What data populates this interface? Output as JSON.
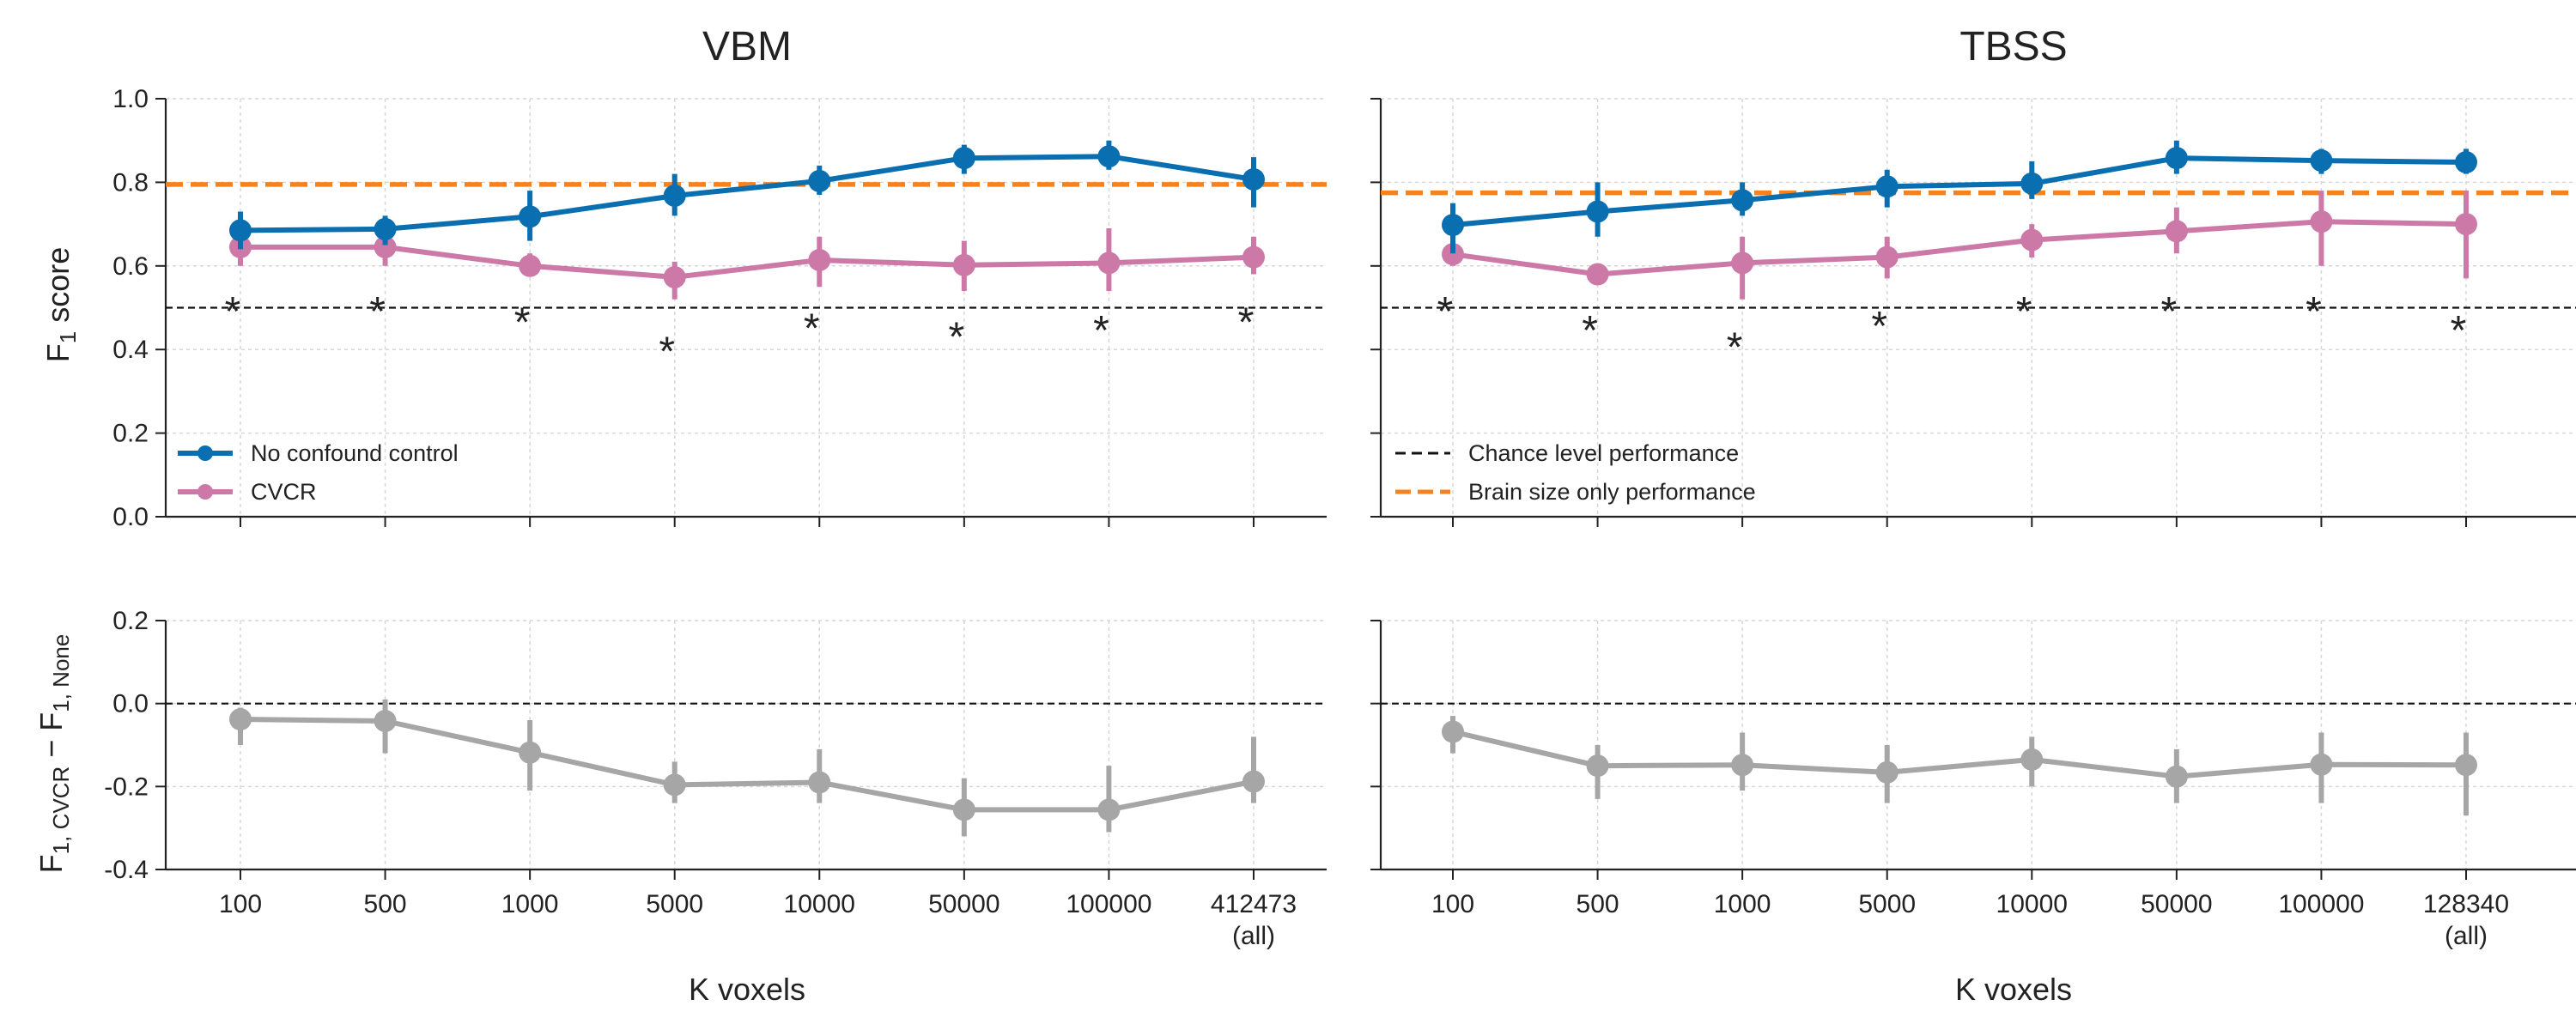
{
  "colors": {
    "no_confound": "#0a6fb0",
    "cvcr": "#cc79a7",
    "brain_size": "#f5821f",
    "chance": "#111111",
    "difference": "#a6a6a6",
    "grid": "#d7d7d7",
    "axis": "#222222"
  },
  "layout_words": {
    "left_legend": "lower-left of top-left panel",
    "right_legend": "lower-left of top-right panel"
  },
  "chart_data": [
    {
      "id": "vbm_f1",
      "type": "line",
      "title": "VBM",
      "ylabel_main": "F",
      "ylabel_sub": "1",
      "ylabel_tail": " score",
      "xlabel": "",
      "categories": [
        "100",
        "500",
        "1000",
        "5000",
        "10000",
        "50000",
        "100000",
        "412473"
      ],
      "ylim": [
        0.0,
        1.0
      ],
      "yticks": [
        "0.0",
        "0.2",
        "0.4",
        "0.6",
        "0.8",
        "1.0"
      ],
      "grid": true,
      "series": [
        {
          "name": "No confound control",
          "color_key": "no_confound",
          "values": [
            0.685,
            0.688,
            0.718,
            0.768,
            0.803,
            0.858,
            0.862,
            0.807
          ],
          "err_low": [
            0.64,
            0.65,
            0.66,
            0.72,
            0.77,
            0.82,
            0.83,
            0.74
          ],
          "err_high": [
            0.73,
            0.72,
            0.78,
            0.82,
            0.84,
            0.89,
            0.9,
            0.86
          ]
        },
        {
          "name": "CVCR",
          "color_key": "cvcr",
          "values": [
            0.645,
            0.645,
            0.6,
            0.573,
            0.614,
            0.602,
            0.607,
            0.621
          ],
          "err_low": [
            0.6,
            0.6,
            0.58,
            0.52,
            0.55,
            0.54,
            0.54,
            0.58
          ],
          "err_high": [
            0.7,
            0.68,
            0.63,
            0.61,
            0.67,
            0.66,
            0.69,
            0.67
          ]
        }
      ],
      "brain_size_only": 0.795,
      "chance_level": 0.5,
      "significance_marks": [
        "*",
        "*",
        "*",
        "*",
        "*",
        "*",
        "*",
        "*"
      ],
      "significance_y": [
        0.515,
        0.515,
        0.49,
        0.42,
        0.475,
        0.455,
        0.47,
        0.49
      ]
    },
    {
      "id": "tbss_f1",
      "type": "line",
      "title": "TBSS",
      "xlabel": "",
      "categories": [
        "100",
        "500",
        "1000",
        "5000",
        "10000",
        "50000",
        "100000",
        "128340"
      ],
      "ylim": [
        0.0,
        1.0
      ],
      "yticks": [
        "0.0",
        "0.2",
        "0.4",
        "0.6",
        "0.8",
        "1.0"
      ],
      "grid": true,
      "series": [
        {
          "name": "No confound control",
          "color_key": "no_confound",
          "values": [
            0.698,
            0.73,
            0.757,
            0.79,
            0.797,
            0.858,
            0.852,
            0.848
          ],
          "err_low": [
            0.63,
            0.67,
            0.72,
            0.74,
            0.76,
            0.82,
            0.82,
            0.82
          ],
          "err_high": [
            0.75,
            0.8,
            0.8,
            0.83,
            0.85,
            0.9,
            0.88,
            0.88
          ]
        },
        {
          "name": "CVCR",
          "color_key": "cvcr",
          "values": [
            0.628,
            0.58,
            0.607,
            0.621,
            0.662,
            0.683,
            0.706,
            0.7
          ],
          "err_low": [
            0.6,
            0.56,
            0.52,
            0.57,
            0.62,
            0.63,
            0.6,
            0.57
          ],
          "err_high": [
            0.66,
            0.6,
            0.67,
            0.67,
            0.7,
            0.74,
            0.78,
            0.78
          ]
        }
      ],
      "brain_size_only": 0.775,
      "chance_level": 0.5,
      "significance_marks": [
        "*",
        "*",
        "*",
        "*",
        "*",
        "*",
        "*",
        "*"
      ],
      "significance_y": [
        0.515,
        0.47,
        0.43,
        0.48,
        0.515,
        0.515,
        0.515,
        0.47
      ]
    },
    {
      "id": "vbm_diff",
      "type": "line",
      "title": "",
      "ylabel_pre": "F",
      "ylabel_sub1": "1, CVCR",
      "ylabel_mid": " − F",
      "ylabel_sub2": "1, None",
      "xlabel": "K voxels",
      "categories": [
        "100",
        "500",
        "1000",
        "5000",
        "10000",
        "50000",
        "100000",
        "412473"
      ],
      "xtick_extra": [
        "",
        "",
        "",
        "",
        "",
        "",
        "",
        "(all)"
      ],
      "ylim": [
        -0.4,
        0.2
      ],
      "yticks": [
        "-0.4",
        "-0.2",
        "0.0",
        "0.2"
      ],
      "ytick_values": [
        -0.4,
        -0.2,
        0.0,
        0.2
      ],
      "grid": true,
      "zero_line": 0.0,
      "series": [
        {
          "name": "",
          "color_key": "difference",
          "values": [
            -0.038,
            -0.042,
            -0.118,
            -0.196,
            -0.19,
            -0.256,
            -0.256,
            -0.188
          ],
          "err_low": [
            -0.1,
            -0.12,
            -0.21,
            -0.24,
            -0.24,
            -0.32,
            -0.31,
            -0.24
          ],
          "err_high": [
            -0.01,
            0.01,
            -0.04,
            -0.14,
            -0.11,
            -0.18,
            -0.15,
            -0.08
          ]
        }
      ]
    },
    {
      "id": "tbss_diff",
      "type": "line",
      "title": "",
      "xlabel": "K voxels",
      "categories": [
        "100",
        "500",
        "1000",
        "5000",
        "10000",
        "50000",
        "100000",
        "128340"
      ],
      "xtick_extra": [
        "",
        "",
        "",
        "",
        "",
        "",
        "",
        "(all)"
      ],
      "ylim": [
        -0.4,
        0.2
      ],
      "ytick_values": [
        -0.4,
        -0.2,
        0.0,
        0.2
      ],
      "grid": true,
      "zero_line": 0.0,
      "series": [
        {
          "name": "",
          "color_key": "difference",
          "values": [
            -0.068,
            -0.15,
            -0.148,
            -0.166,
            -0.135,
            -0.176,
            -0.147,
            -0.148
          ],
          "err_low": [
            -0.12,
            -0.23,
            -0.21,
            -0.24,
            -0.2,
            -0.24,
            -0.24,
            -0.27
          ],
          "err_high": [
            -0.03,
            -0.1,
            -0.07,
            -0.1,
            -0.08,
            -0.11,
            -0.07,
            -0.07
          ]
        }
      ]
    }
  ],
  "legends": {
    "left": [
      {
        "label": "No confound control",
        "color_key": "no_confound",
        "style": "line-marker"
      },
      {
        "label": "CVCR",
        "color_key": "cvcr",
        "style": "line-marker"
      }
    ],
    "right": [
      {
        "label": "Chance level performance",
        "color_key": "chance",
        "style": "dashed-thin"
      },
      {
        "label": "Brain size only performance",
        "color_key": "brain_size",
        "style": "dashed-thick"
      }
    ]
  }
}
